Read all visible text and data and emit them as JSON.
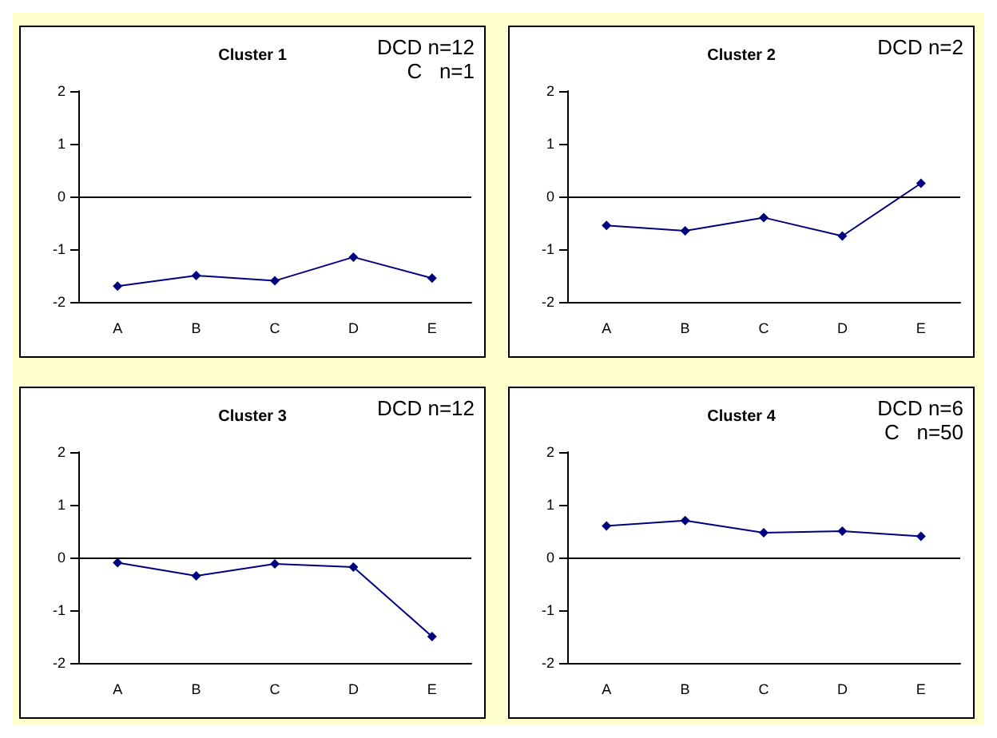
{
  "chart_data": [
    {
      "type": "line",
      "title": "Cluster 1",
      "annotations": [
        "DCD n=12",
        "C   n=1"
      ],
      "categories": [
        "A",
        "B",
        "C",
        "D",
        "E"
      ],
      "series": [
        {
          "color": "#000080",
          "values": [
            -1.7,
            -1.5,
            -1.6,
            -1.15,
            -1.55
          ]
        }
      ],
      "ylim": [
        -2,
        2
      ],
      "yticks": [
        -2,
        -1,
        0,
        1,
        2
      ],
      "ref_lines": [
        {
          "axis": "y",
          "value": 0,
          "color": "#000000"
        }
      ],
      "grid": false,
      "marker": "diamond",
      "line_style": "solid"
    },
    {
      "type": "line",
      "title": "Cluster 2",
      "annotations": [
        "DCD n=2"
      ],
      "categories": [
        "A",
        "B",
        "C",
        "D",
        "E"
      ],
      "series": [
        {
          "color": "#000080",
          "values": [
            -0.55,
            -0.65,
            -0.4,
            -0.75,
            0.25
          ]
        }
      ],
      "ylim": [
        -2,
        2
      ],
      "yticks": [
        -2,
        -1,
        0,
        1,
        2
      ],
      "ref_lines": [
        {
          "axis": "y",
          "value": 0,
          "color": "#000000"
        }
      ],
      "grid": false,
      "marker": "diamond",
      "line_style": "solid"
    },
    {
      "type": "line",
      "title": "Cluster 3",
      "annotations": [
        "DCD n=12"
      ],
      "categories": [
        "A",
        "B",
        "C",
        "D",
        "E"
      ],
      "series": [
        {
          "color": "#000080",
          "values": [
            -0.1,
            -0.35,
            -0.12,
            -0.18,
            -1.5
          ]
        }
      ],
      "ylim": [
        -2,
        2
      ],
      "yticks": [
        -2,
        -1,
        0,
        1,
        2
      ],
      "ref_lines": [
        {
          "axis": "y",
          "value": 0,
          "color": "#000000"
        }
      ],
      "grid": false,
      "marker": "diamond",
      "line_style": "solid"
    },
    {
      "type": "line",
      "title": "Cluster 4",
      "annotations": [
        "DCD n=6",
        "C   n=50"
      ],
      "categories": [
        "A",
        "B",
        "C",
        "D",
        "E"
      ],
      "series": [
        {
          "color": "#000080",
          "values": [
            0.6,
            0.7,
            0.47,
            0.5,
            0.4
          ]
        }
      ],
      "ylim": [
        -2,
        2
      ],
      "yticks": [
        -2,
        -1,
        0,
        1,
        2
      ],
      "ref_lines": [
        {
          "axis": "y",
          "value": 0,
          "color": "#000000"
        }
      ],
      "grid": false,
      "marker": "diamond",
      "line_style": "solid"
    }
  ]
}
